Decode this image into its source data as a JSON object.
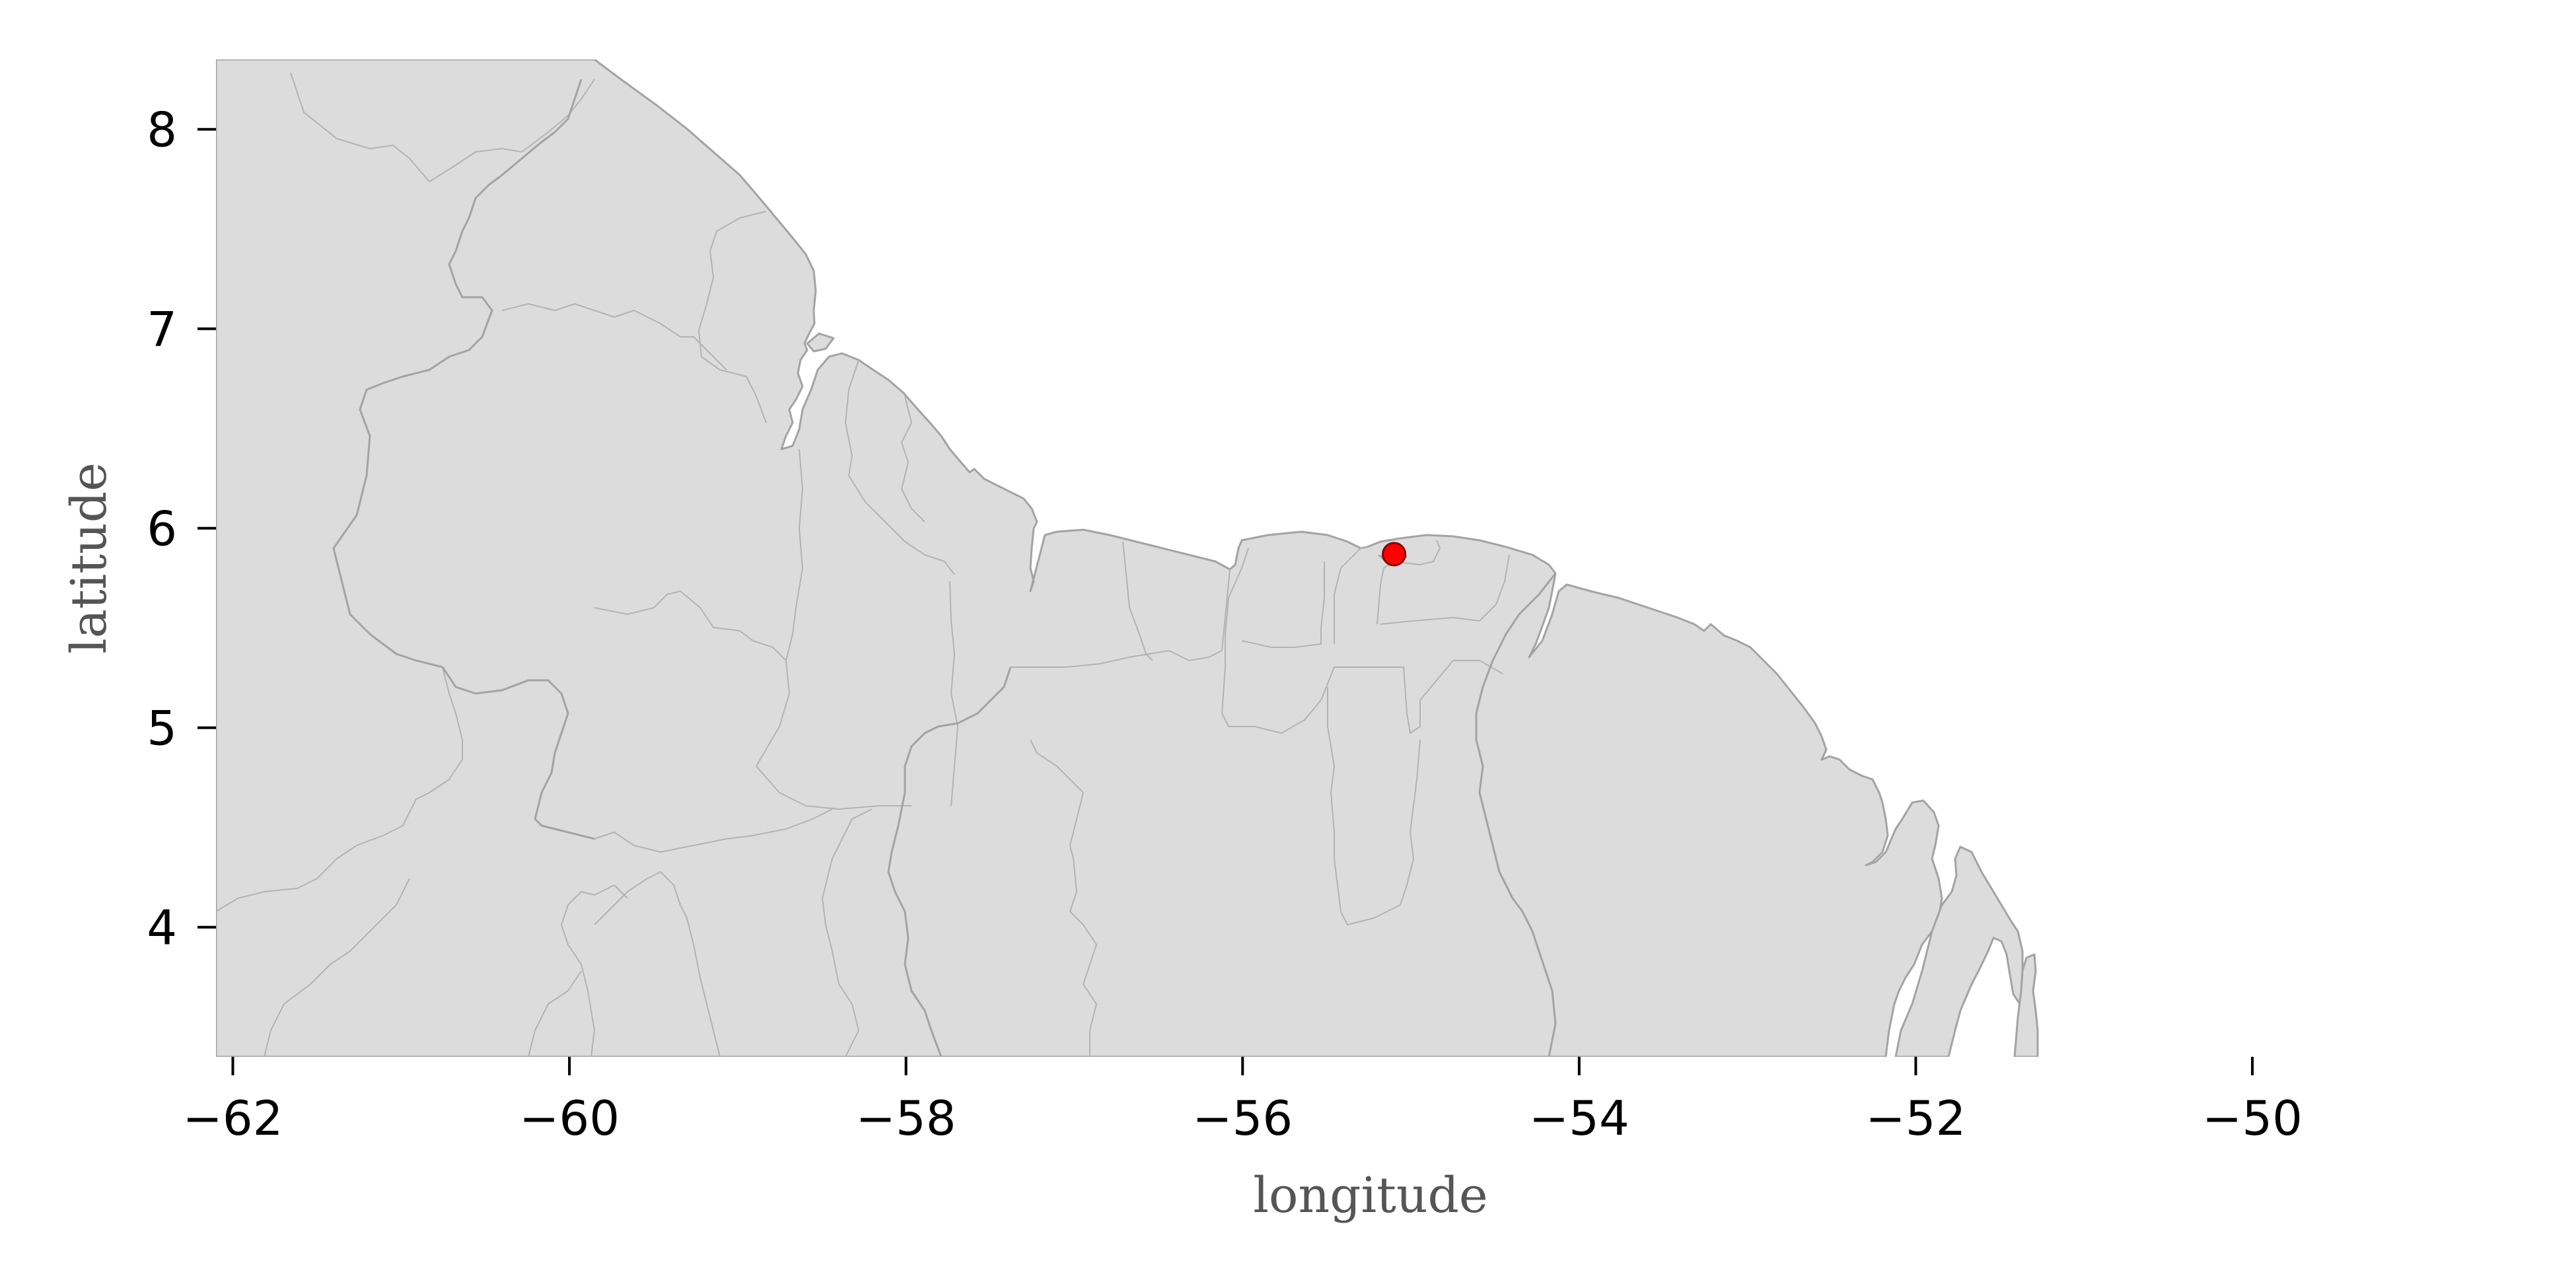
{
  "map": {
    "xlabel": "longitude",
    "ylabel": "latitude",
    "xlim": [
      -62.1,
      -50
    ],
    "ylim": [
      3.35,
      8.35
    ],
    "x_ticks": [
      {
        "value": -62,
        "label": "−62"
      },
      {
        "value": -60,
        "label": "−60"
      },
      {
        "value": -58,
        "label": "−58"
      },
      {
        "value": -56,
        "label": "−56"
      },
      {
        "value": -54,
        "label": "−54"
      },
      {
        "value": -52,
        "label": "−52"
      },
      {
        "value": -50,
        "label": "−50"
      }
    ],
    "y_ticks": [
      {
        "value": 4,
        "label": "4"
      },
      {
        "value": 5,
        "label": "5"
      },
      {
        "value": 6,
        "label": "6"
      },
      {
        "value": 7,
        "label": "7"
      },
      {
        "value": 8,
        "label": "8"
      }
    ],
    "marker": {
      "lon": -55.1,
      "lat": 5.87,
      "color": "#ff0000"
    },
    "colors": {
      "land": "#dcdcdc",
      "border": "#a3a3a3",
      "ocean": "#ffffff"
    }
  }
}
